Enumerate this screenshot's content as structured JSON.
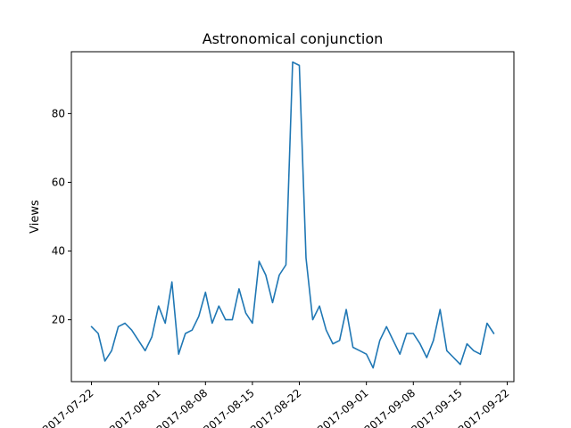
{
  "chart_data": {
    "type": "line",
    "title": "Astronomical conjunction",
    "xlabel": "",
    "ylabel": "Views",
    "x_tick_labels": [
      "2017-07-22",
      "2017-08-01",
      "2017-08-08",
      "2017-08-15",
      "2017-08-22",
      "2017-09-01",
      "2017-09-08",
      "2017-09-15",
      "2017-09-22"
    ],
    "y_tick_labels": [
      "20",
      "40",
      "60",
      "80"
    ],
    "ylim": [
      2,
      98
    ],
    "xlim": [
      "2017-07-19",
      "2017-09-23"
    ],
    "grid": false,
    "line_color": "#1f77b4",
    "series": [
      {
        "x": [
          "2017-07-22",
          "2017-07-23",
          "2017-07-24",
          "2017-07-25",
          "2017-07-26",
          "2017-07-27",
          "2017-07-28",
          "2017-07-29",
          "2017-07-30",
          "2017-07-31",
          "2017-08-01",
          "2017-08-02",
          "2017-08-03",
          "2017-08-04",
          "2017-08-05",
          "2017-08-06",
          "2017-08-07",
          "2017-08-08",
          "2017-08-09",
          "2017-08-10",
          "2017-08-11",
          "2017-08-12",
          "2017-08-13",
          "2017-08-14",
          "2017-08-15",
          "2017-08-16",
          "2017-08-17",
          "2017-08-18",
          "2017-08-19",
          "2017-08-20",
          "2017-08-21",
          "2017-08-22",
          "2017-08-23",
          "2017-08-24",
          "2017-08-25",
          "2017-08-26",
          "2017-08-27",
          "2017-08-28",
          "2017-08-29",
          "2017-08-30",
          "2017-08-31",
          "2017-09-01",
          "2017-09-02",
          "2017-09-03",
          "2017-09-04",
          "2017-09-05",
          "2017-09-06",
          "2017-09-07",
          "2017-09-08",
          "2017-09-09",
          "2017-09-10",
          "2017-09-11",
          "2017-09-12",
          "2017-09-13",
          "2017-09-14",
          "2017-09-15",
          "2017-09-16",
          "2017-09-17",
          "2017-09-18",
          "2017-09-19",
          "2017-09-20"
        ],
        "y": [
          18,
          16,
          8,
          11,
          18,
          19,
          17,
          14,
          11,
          15,
          24,
          19,
          31,
          10,
          16,
          17,
          21,
          28,
          19,
          24,
          20,
          20,
          29,
          22,
          19,
          37,
          33,
          25,
          33,
          36,
          95,
          94,
          38,
          20,
          24,
          17,
          13,
          14,
          23,
          12,
          11,
          10,
          6,
          14,
          18,
          14,
          10,
          16,
          16,
          13,
          9,
          14,
          23,
          11,
          9,
          7,
          13,
          11,
          10,
          19,
          16
        ]
      }
    ]
  }
}
